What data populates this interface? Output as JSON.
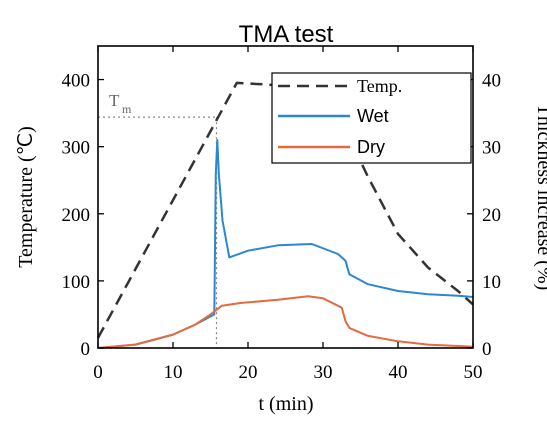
{
  "chart_data": {
    "type": "line",
    "title": "TMA test",
    "xlabel": "t (min)",
    "ylabel_left": "Temperature (℃)",
    "ylabel_right": "Thickness increase (%)",
    "xlim": [
      0,
      50
    ],
    "ylim_left": [
      0,
      450
    ],
    "ylim_right": [
      0,
      45
    ],
    "xticks": [
      "0",
      "10",
      "20",
      "30",
      "40",
      "50"
    ],
    "yticks_left": [
      "0",
      "100",
      "200",
      "300",
      "400"
    ],
    "yticks_right": [
      "0",
      "10",
      "20",
      "30",
      "40"
    ],
    "grid": false,
    "legend_position": "top-right",
    "annotation": {
      "label": "T",
      "subscript": "m",
      "x": 15.8,
      "y": 344
    },
    "series": [
      {
        "name": "Temp.",
        "axis": "left",
        "color": "#333333",
        "style": "dashed",
        "x": [
          0,
          18.5,
          22,
          26,
          30,
          33,
          36,
          40,
          44,
          48,
          50
        ],
        "y": [
          15,
          395,
          393,
          390,
          370,
          325,
          255,
          170,
          120,
          85,
          65
        ]
      },
      {
        "name": "Wet",
        "axis": "right",
        "color": "#2b87d1",
        "style": "solid",
        "x": [
          0,
          5,
          10,
          13,
          15.5,
          15.7,
          15.9,
          16.1,
          16.6,
          17.5,
          20,
          24,
          28.5,
          32,
          33,
          33.5,
          36,
          40,
          44,
          48,
          50
        ],
        "y": [
          0,
          0.5,
          2,
          3.5,
          5,
          26,
          31,
          26,
          19,
          13.5,
          14.5,
          15.3,
          15.5,
          14,
          13,
          11,
          9.5,
          8.5,
          8,
          7.8,
          7.6
        ]
      },
      {
        "name": "Dry",
        "axis": "right",
        "color": "#e46b40",
        "style": "solid",
        "x": [
          0,
          5,
          10,
          13,
          15,
          16.5,
          19,
          24,
          28,
          30,
          32.5,
          33,
          33.5,
          36,
          40,
          44,
          48,
          50
        ],
        "y": [
          0,
          0.5,
          2,
          3.5,
          5,
          6.3,
          6.7,
          7.2,
          7.7,
          7.4,
          6,
          4,
          3,
          1.8,
          1,
          0.5,
          0.3,
          0.2
        ]
      }
    ]
  }
}
